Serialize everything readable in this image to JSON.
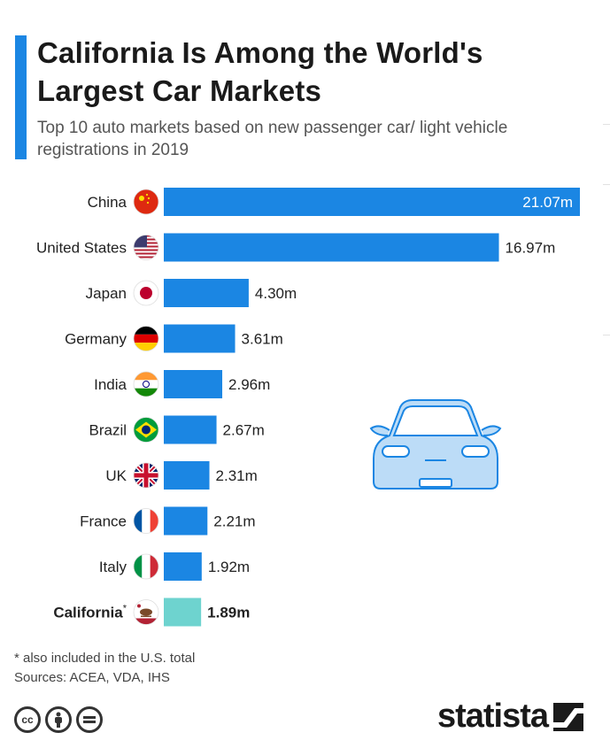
{
  "header": {
    "title": "California Is Among the World's Largest Car Markets",
    "subtitle": "Top 10 auto markets based on new passenger car/ light vehicle registrations in 2019"
  },
  "colors": {
    "accent": "#1b86e3",
    "bar": "#1b86e3",
    "highlight": "#6ed3cf",
    "text": "#1a1a1a"
  },
  "chart_data": {
    "type": "bar",
    "orientation": "horizontal",
    "categories": [
      "China",
      "United States",
      "Japan",
      "Germany",
      "India",
      "Brazil",
      "UK",
      "France",
      "Italy",
      "California*"
    ],
    "values": [
      21.07,
      16.97,
      4.3,
      3.61,
      2.96,
      2.67,
      2.31,
      2.21,
      1.92,
      1.89
    ],
    "value_labels": [
      "21.07m",
      "16.97m",
      "4.30m",
      "3.61m",
      "2.96m",
      "2.67m",
      "2.31m",
      "2.21m",
      "1.92m",
      "1.89m"
    ],
    "flags": [
      "china-flag-icon",
      "usa-flag-icon",
      "japan-flag-icon",
      "germany-flag-icon",
      "india-flag-icon",
      "brazil-flag-icon",
      "uk-flag-icon",
      "france-flag-icon",
      "italy-flag-icon",
      "california-flag-icon"
    ],
    "highlight_index": 9,
    "grid": false,
    "legend": "none"
  },
  "footer": {
    "note": "* also included in the U.S. total",
    "sources": "Sources: ACEA, VDA, IHS",
    "brand": "statista",
    "license_icons": [
      "cc-icon",
      "attribution-icon",
      "no-derivatives-icon"
    ]
  }
}
